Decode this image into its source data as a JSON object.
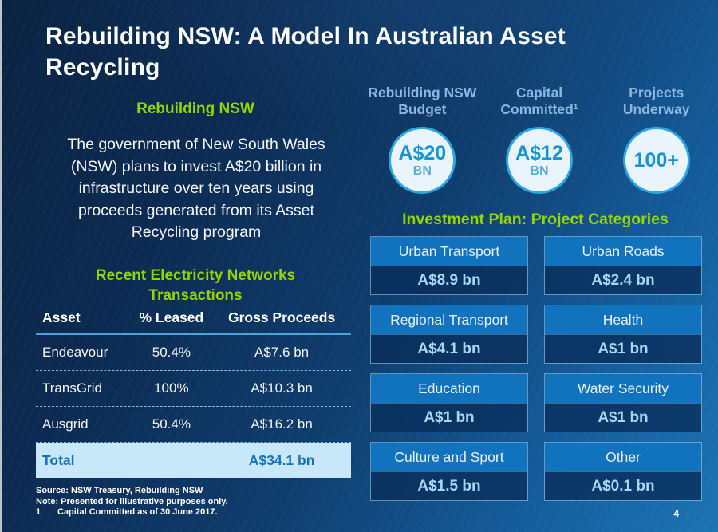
{
  "slide": {
    "title": "Rebuilding NSW: A Model In Australian Asset Recycling",
    "page_number": "4"
  },
  "left": {
    "heading": "Rebuilding NSW",
    "paragraph": "The government of New South Wales (NSW) plans to invest A$20 billion in infrastructure over ten years using proceeds generated from its Asset Recycling program",
    "table_heading": "Recent Electricity Networks Transactions",
    "table": {
      "columns": [
        "Asset",
        "% Leased",
        "Gross Proceeds"
      ],
      "rows": [
        {
          "asset": "Endeavour",
          "leased": "50.4%",
          "proceeds": "A$7.6 bn"
        },
        {
          "asset": "TransGrid",
          "leased": "100%",
          "proceeds": "A$10.3 bn"
        },
        {
          "asset": "Ausgrid",
          "leased": "50.4%",
          "proceeds": "A$16.2 bn"
        }
      ],
      "total": {
        "label": "Total",
        "proceeds": "A$34.1 bn"
      }
    },
    "footnotes": [
      {
        "text": "Source: NSW Treasury, Rebuilding NSW"
      },
      {
        "text": "Note: Presented for illustrative purposes only."
      },
      {
        "marker": "1",
        "text": "Capital Committed as of 30 June 2017."
      }
    ]
  },
  "stats": [
    {
      "label": "Rebuilding NSW Budget",
      "value": "A$20",
      "unit": "BN"
    },
    {
      "label": "Capital Committed¹",
      "value": "A$12",
      "unit": "BN"
    },
    {
      "label": "Projects Underway",
      "value": "100+",
      "unit": ""
    }
  ],
  "investment": {
    "heading": "Investment Plan: Project Categories",
    "categories": [
      {
        "name": "Urban Transport",
        "value": "A$8.9 bn"
      },
      {
        "name": "Urban Roads",
        "value": "A$2.4 bn"
      },
      {
        "name": "Regional Transport",
        "value": "A$4.1 bn"
      },
      {
        "name": "Health",
        "value": "A$1 bn"
      },
      {
        "name": "Education",
        "value": "A$1 bn"
      },
      {
        "name": "Water Security",
        "value": "A$1 bn"
      },
      {
        "name": "Culture and Sport",
        "value": "A$1.5 bn"
      },
      {
        "name": "Other",
        "value": "A$0.1 bn"
      }
    ]
  },
  "colors": {
    "background_dark": "#0a2342",
    "background_light": "#1c74b4",
    "heading_green": "#94d500",
    "stat_label_blue": "#8ab7e1",
    "circle_border": "#2aa7e0",
    "circle_fill": "#e9f4fb",
    "circle_value": "#1694d4",
    "category_header_bg": "#1173be",
    "category_value_text": "#a4d9f6",
    "table_rule": "#4aa3d9",
    "total_row_bg": "#c8e7f8",
    "total_row_text": "#1173be",
    "text_white": "#ffffff"
  }
}
